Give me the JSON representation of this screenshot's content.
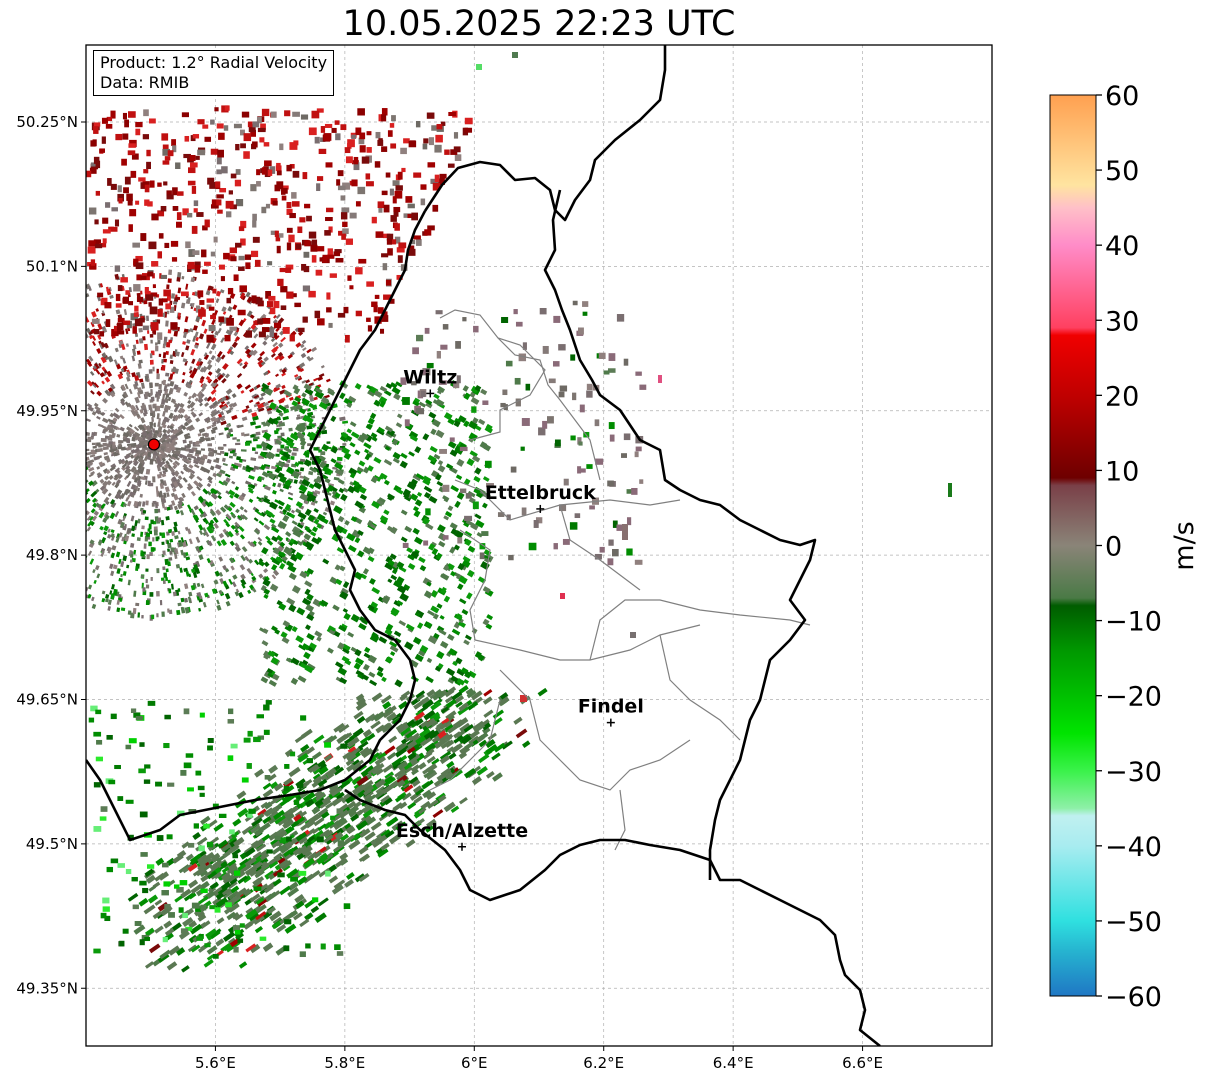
{
  "title": "10.05.2025 22:23 UTC",
  "info": {
    "product": "Product: 1.2° Radial Velocity",
    "data": "Data: RMIB"
  },
  "map": {
    "lon_range": [
      5.4,
      6.8
    ],
    "lat_range": [
      49.29,
      50.33
    ],
    "lon_ticks": [
      {
        "value": 5.6,
        "label": "5.6°E"
      },
      {
        "value": 5.8,
        "label": "5.8°E"
      },
      {
        "value": 6.0,
        "label": "6°E"
      },
      {
        "value": 6.2,
        "label": "6.2°E"
      },
      {
        "value": 6.4,
        "label": "6.4°E"
      },
      {
        "value": 6.6,
        "label": "6.6°E"
      }
    ],
    "lat_ticks": [
      {
        "value": 50.25,
        "label": "50.25°N"
      },
      {
        "value": 50.1,
        "label": "50.1°N"
      },
      {
        "value": 49.95,
        "label": "49.95°N"
      },
      {
        "value": 49.8,
        "label": "49.8°N"
      },
      {
        "value": 49.65,
        "label": "49.65°N"
      },
      {
        "value": 49.5,
        "label": "49.5°N"
      },
      {
        "value": 49.35,
        "label": "49.35°N"
      }
    ],
    "radar_site": {
      "lon": 5.505,
      "lat": 49.915
    },
    "cities": [
      {
        "name": "Wiltz",
        "lon": 5.932,
        "lat": 49.968
      },
      {
        "name": "Ettelbruck",
        "lon": 6.102,
        "lat": 49.848
      },
      {
        "name": "Findel",
        "lon": 6.211,
        "lat": 49.626
      },
      {
        "name": "Esch/Alzette",
        "lon": 5.981,
        "lat": 49.497
      }
    ]
  },
  "colorbar": {
    "min": -60,
    "max": 60,
    "label": "m/s",
    "ticks": [
      {
        "value": 60,
        "label": "60"
      },
      {
        "value": 50,
        "label": "50"
      },
      {
        "value": 40,
        "label": "40"
      },
      {
        "value": 30,
        "label": "30"
      },
      {
        "value": 20,
        "label": "20"
      },
      {
        "value": 10,
        "label": "10"
      },
      {
        "value": 0,
        "label": "0"
      },
      {
        "value": -10,
        "label": "−10"
      },
      {
        "value": -20,
        "label": "−20"
      },
      {
        "value": -30,
        "label": "−30"
      },
      {
        "value": -40,
        "label": "−40"
      },
      {
        "value": -50,
        "label": "−50"
      },
      {
        "value": -60,
        "label": "−60"
      }
    ],
    "stops": [
      {
        "v": -60,
        "c": "#1f77c4"
      },
      {
        "v": -54,
        "c": "#26b4d0"
      },
      {
        "v": -50,
        "c": "#2fe0e0"
      },
      {
        "v": -40,
        "c": "#a8ecf0"
      },
      {
        "v": -36,
        "c": "#c0f0f0"
      },
      {
        "v": -35,
        "c": "#8ef0a8"
      },
      {
        "v": -30,
        "c": "#3af24a"
      },
      {
        "v": -25,
        "c": "#00e400"
      },
      {
        "v": -20,
        "c": "#00c000"
      },
      {
        "v": -14,
        "c": "#009800"
      },
      {
        "v": -8,
        "c": "#005c00"
      },
      {
        "v": -7,
        "c": "#4a7a46"
      },
      {
        "v": 0,
        "c": "#8a8478"
      },
      {
        "v": 8,
        "c": "#7a4048"
      },
      {
        "v": 9,
        "c": "#6e0000"
      },
      {
        "v": 20,
        "c": "#c00000"
      },
      {
        "v": 28,
        "c": "#f00000"
      },
      {
        "v": 29,
        "c": "#ff4060"
      },
      {
        "v": 40,
        "c": "#ff8cc8"
      },
      {
        "v": 45,
        "c": "#ffc0c8"
      },
      {
        "v": 48,
        "c": "#ffe4a0"
      },
      {
        "v": 60,
        "c": "#ffa050"
      }
    ]
  },
  "colors": {
    "border": "#000000",
    "canton": "#808080",
    "grid": "#b0b0b0",
    "radar_marker": "#ee0000"
  }
}
